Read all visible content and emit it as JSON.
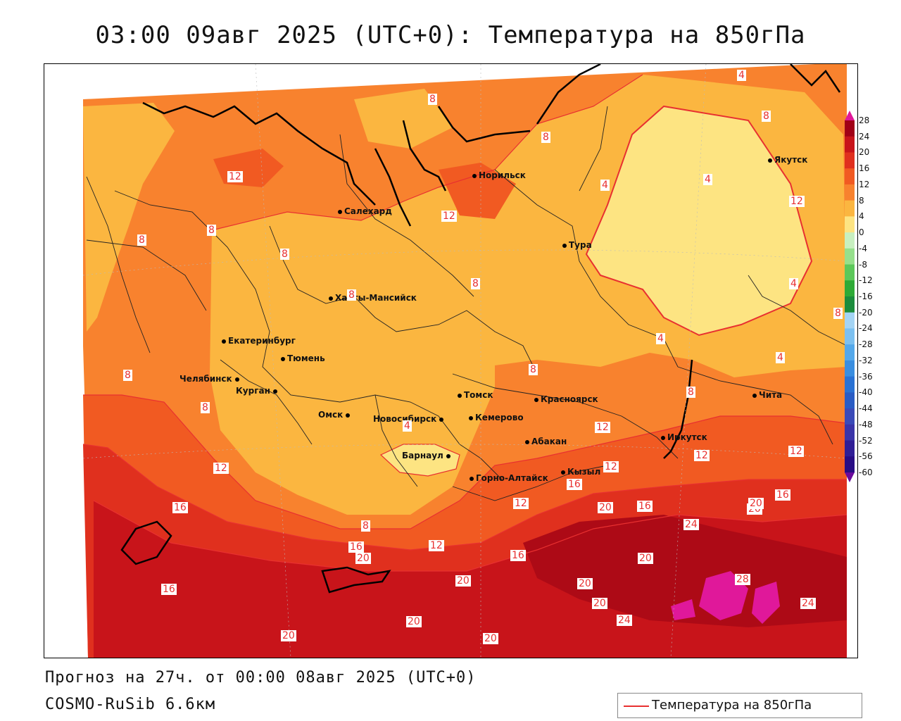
{
  "title": "03:00 09авг 2025 (UTC+0): Температура на 850гПа",
  "footer": {
    "forecast": "Прогноз на 27ч. от 00:00 08авг 2025 (UTC+0)",
    "model": "COSMO-RuSib 6.6км"
  },
  "legend": {
    "label": "Температура на 850гПа",
    "color": "#e83030"
  },
  "colors": {
    "zone_0_4": "#fde482",
    "zone_4_8": "#fbb640",
    "zone_8_12": "#f8822e",
    "zone_12_16": "#f15a22",
    "zone_16_20": "#e0301e",
    "zone_20_24": "#c8141a",
    "zone_24_28": "#ad0a16",
    "zone_28_plus": "#e0189a",
    "contour": "#e83030"
  },
  "colorbar": {
    "ticks": [
      "28",
      "24",
      "20",
      "16",
      "12",
      "8",
      "4",
      "0",
      "-4",
      "-8",
      "-12",
      "-16",
      "-20",
      "-24",
      "-28",
      "-32",
      "-36",
      "-40",
      "-44",
      "-48",
      "-52",
      "-56",
      "-60"
    ],
    "colors": [
      "#a10016",
      "#c8141a",
      "#e0301e",
      "#f15a22",
      "#f8822e",
      "#fbb640",
      "#fde482",
      "#c8f0c0",
      "#96e08c",
      "#5cc85a",
      "#2eaa36",
      "#1c8c3c",
      "#a4d4f4",
      "#7cc0f0",
      "#54a8ea",
      "#3a8ee0",
      "#2a72d4",
      "#2a5cc4",
      "#3a4ab8",
      "#3a34a8",
      "#301e96",
      "#280c84"
    ]
  },
  "cities": [
    {
      "name": "Норильск"
    },
    {
      "name": "Якутск"
    },
    {
      "name": "Салехард"
    },
    {
      "name": "Тура"
    },
    {
      "name": "Ханты-Мансийск"
    },
    {
      "name": "Екатеринбург"
    },
    {
      "name": "Тюмень"
    },
    {
      "name": "Челябинск"
    },
    {
      "name": "Курган"
    },
    {
      "name": "Омск"
    },
    {
      "name": "Томск"
    },
    {
      "name": "Новосибирск"
    },
    {
      "name": "Кемерово"
    },
    {
      "name": "Красноярск"
    },
    {
      "name": "Абакан"
    },
    {
      "name": "Барнаул"
    },
    {
      "name": "Горно-Алтайск"
    },
    {
      "name": "Кызыл"
    },
    {
      "name": "Иркутск"
    },
    {
      "name": "Чита"
    }
  ],
  "contour_labels": [
    "12",
    "8",
    "8",
    "8",
    "4",
    "8",
    "4",
    "4",
    "8",
    "4",
    "4",
    "4",
    "12",
    "8",
    "8",
    "12",
    "8",
    "8",
    "8",
    "8",
    "4",
    "12",
    "12",
    "12",
    "12",
    "12",
    "16",
    "16",
    "12",
    "16",
    "12",
    "8",
    "16",
    "16",
    "20",
    "16",
    "20",
    "20",
    "16",
    "20",
    "24",
    "20",
    "20",
    "20",
    "24",
    "20",
    "28",
    "24",
    "20",
    "20",
    "20",
    "8",
    "8"
  ]
}
